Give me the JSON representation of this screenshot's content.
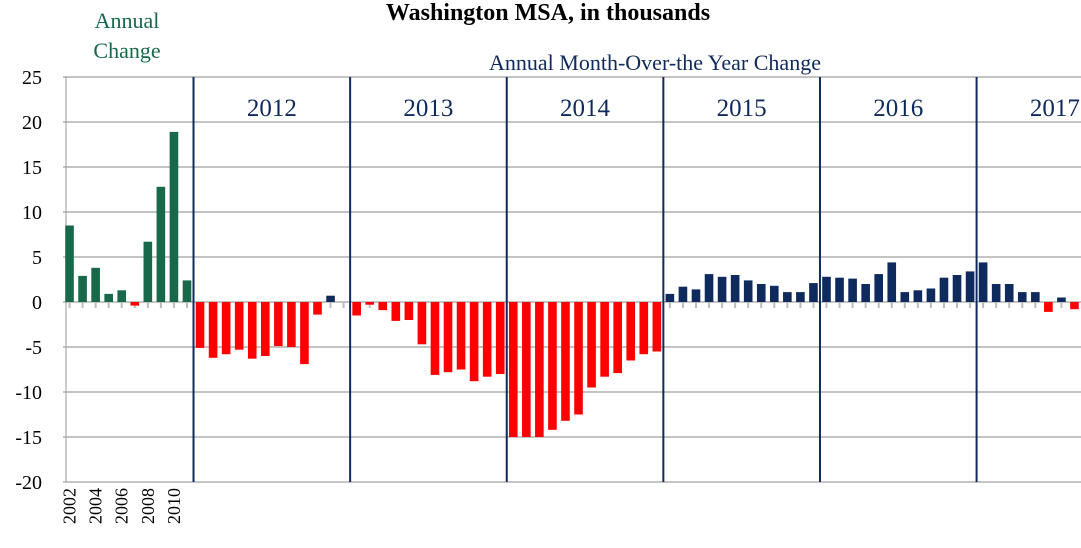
{
  "chart_data": {
    "type": "bar",
    "title": "Washington MSA, in thousands",
    "categories": [
      "2002",
      null,
      "2004",
      null,
      "2006",
      null,
      "2008",
      null,
      "2010",
      null,
      null,
      null,
      null,
      null,
      null,
      null,
      null,
      null,
      null,
      null,
      null,
      null,
      null,
      null,
      null,
      null,
      null,
      null,
      null,
      null,
      null,
      null,
      null,
      null,
      null,
      null,
      null,
      null,
      null,
      null,
      null,
      null,
      null,
      null,
      null,
      null,
      null,
      null,
      null,
      null,
      null,
      null,
      null,
      null,
      null,
      null,
      null,
      null,
      null,
      null,
      null,
      null,
      null,
      null,
      null,
      null,
      null,
      null,
      null,
      null,
      null,
      null,
      null,
      null,
      null,
      null,
      null,
      null
    ],
    "series": [
      {
        "name": "Annual Change",
        "color": "#17694a",
        "values": [
          8.5,
          2.9,
          3.8,
          0.9,
          1.3,
          -0.4,
          6.7,
          12.8,
          18.9,
          2.4,
          null,
          null,
          null,
          null,
          null,
          null,
          null,
          null,
          null,
          null,
          null,
          null,
          null,
          null,
          null,
          null,
          null,
          null,
          null,
          null,
          null,
          null,
          null,
          null,
          null,
          null,
          null,
          null,
          null,
          null,
          null,
          null,
          null,
          null,
          null,
          null,
          null,
          null,
          null,
          null,
          null,
          null,
          null,
          null,
          null,
          null,
          null,
          null,
          null,
          null,
          null,
          null,
          null,
          null,
          null,
          null,
          null,
          null,
          null,
          null,
          null,
          null,
          null,
          null,
          null,
          null,
          null,
          null
        ]
      },
      {
        "name": "Annual Month-Over-the Year Change",
        "color": "#0f2a5c",
        "values": [
          null,
          null,
          null,
          null,
          null,
          null,
          null,
          null,
          null,
          null,
          -5.1,
          -6.2,
          -5.8,
          -5.3,
          -6.3,
          -6.0,
          -4.9,
          -5.0,
          -6.9,
          -1.4,
          0.7,
          0,
          -1.5,
          -0.3,
          -0.9,
          -2.1,
          -2.0,
          -4.7,
          -8.1,
          -7.8,
          -7.5,
          -8.8,
          -8.3,
          -8.0,
          -15.0,
          -15.0,
          -15.0,
          -14.2,
          -13.2,
          -12.5,
          -9.5,
          -8.3,
          -7.9,
          -6.5,
          -5.8,
          -5.5,
          0.9,
          1.7,
          1.4,
          3.1,
          2.8,
          3.0,
          2.4,
          2.0,
          1.8,
          1.1,
          1.1,
          2.1,
          2.8,
          2.7,
          2.6,
          2.0,
          3.1,
          4.4,
          1.1,
          1.3,
          1.5,
          2.7,
          3.0,
          3.4,
          4.4,
          2.0,
          2.0,
          1.1,
          1.1,
          -1.1,
          0.5,
          -0.8
        ]
      }
    ],
    "negative_color": "#ff0000",
    "year_labels": [
      "2012",
      "2013",
      "2014",
      "2015",
      "2016",
      "2017"
    ],
    "ylim": [
      -20,
      25
    ],
    "yticks": [
      -20,
      -15,
      -10,
      -5,
      0,
      5,
      10,
      15,
      20,
      25
    ],
    "grid": true
  }
}
